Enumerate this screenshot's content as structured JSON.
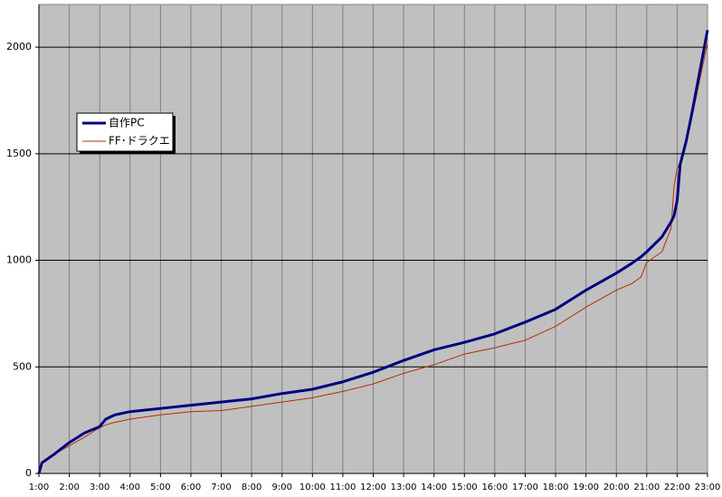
{
  "chart_data": {
    "type": "line",
    "x": [
      1,
      1.1,
      1.5,
      2,
      2.5,
      3,
      3.2,
      3.5,
      4,
      5,
      6,
      7,
      8,
      9,
      10,
      11,
      12,
      13,
      14,
      15,
      16,
      17,
      18,
      19,
      20,
      20.5,
      20.8,
      21,
      21.5,
      21.8,
      21.9,
      22,
      22.1,
      22.3,
      22.5,
      23
    ],
    "series": [
      {
        "name": "自作PC",
        "color": "#000080",
        "width": 3,
        "values": [
          0,
          50,
          90,
          145,
          190,
          220,
          255,
          275,
          290,
          305,
          320,
          335,
          350,
          375,
          395,
          430,
          475,
          530,
          580,
          615,
          655,
          710,
          770,
          860,
          940,
          985,
          1015,
          1040,
          1110,
          1180,
          1210,
          1280,
          1450,
          1560,
          1700,
          2080
        ]
      },
      {
        "name": "FF･ドラクエ",
        "color": "#b03000",
        "width": 1,
        "values": [
          0,
          50,
          90,
          130,
          170,
          215,
          228,
          240,
          255,
          275,
          290,
          295,
          315,
          335,
          355,
          385,
          420,
          470,
          510,
          560,
          590,
          625,
          690,
          780,
          860,
          890,
          920,
          990,
          1040,
          1150,
          1350,
          1430,
          1460,
          1550,
          1680,
          2020
        ]
      }
    ],
    "xlim": [
      1,
      23
    ],
    "xticks": [
      {
        "value": 1,
        "label": "1:00"
      },
      {
        "value": 2,
        "label": "2:00"
      },
      {
        "value": 3,
        "label": "3:00"
      },
      {
        "value": 4,
        "label": "4:00"
      },
      {
        "value": 5,
        "label": "5:00"
      },
      {
        "value": 6,
        "label": "6:00"
      },
      {
        "value": 7,
        "label": "7:00"
      },
      {
        "value": 8,
        "label": "8:00"
      },
      {
        "value": 9,
        "label": "9:00"
      },
      {
        "value": 10,
        "label": "10:00"
      },
      {
        "value": 11,
        "label": "11:00"
      },
      {
        "value": 12,
        "label": "12:00"
      },
      {
        "value": 13,
        "label": "13:00"
      },
      {
        "value": 14,
        "label": "14:00"
      },
      {
        "value": 15,
        "label": "15:00"
      },
      {
        "value": 16,
        "label": "16:00"
      },
      {
        "value": 17,
        "label": "17:00"
      },
      {
        "value": 18,
        "label": "18:00"
      },
      {
        "value": 19,
        "label": "19:00"
      },
      {
        "value": 20,
        "label": "20:00"
      },
      {
        "value": 21,
        "label": "21:00"
      },
      {
        "value": 22,
        "label": "22:00"
      },
      {
        "value": 23,
        "label": "23:00"
      }
    ],
    "ylim": [
      0,
      2200
    ],
    "yticks": [
      0,
      500,
      1000,
      1500,
      2000
    ],
    "grid": true,
    "legend": "upper left"
  }
}
